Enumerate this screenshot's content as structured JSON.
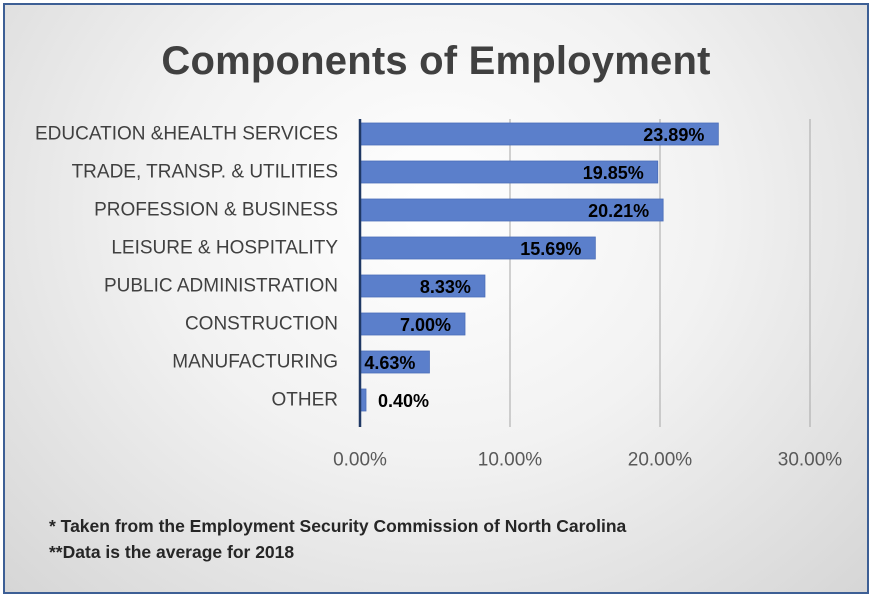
{
  "colors": {
    "bar": "#5b7fcb",
    "axis_line": "#1f3864",
    "grid": "#a6a6a6",
    "frame": "#3d5f95"
  },
  "chart_data": {
    "type": "bar",
    "orientation": "horizontal",
    "title": "Components of Employment",
    "categories": [
      "EDUCATION &HEALTH SERVICES",
      "TRADE, TRANSP. & UTILITIES",
      "PROFESSION & BUSINESS",
      "LEISURE & HOSPITALITY",
      "PUBLIC ADMINISTRATION",
      "CONSTRUCTION",
      "MANUFACTURING",
      "OTHER"
    ],
    "values": [
      23.89,
      19.85,
      20.21,
      15.69,
      8.33,
      7.0,
      4.63,
      0.4
    ],
    "data_labels": [
      "23.89%",
      "19.85%",
      "20.21%",
      "15.69%",
      "8.33%",
      "7.00%",
      "4.63%",
      "0.40%"
    ],
    "xlim": [
      0,
      30
    ],
    "x_ticks": [
      0,
      10,
      20,
      30
    ],
    "x_tick_labels": [
      "0.00%",
      "10.00%",
      "20.00%",
      "30.00%"
    ],
    "grid": "vertical"
  },
  "notes": {
    "line1": "* Taken from the Employment Security Commission of North Carolina",
    "line2": "**Data is the average for 2018"
  }
}
